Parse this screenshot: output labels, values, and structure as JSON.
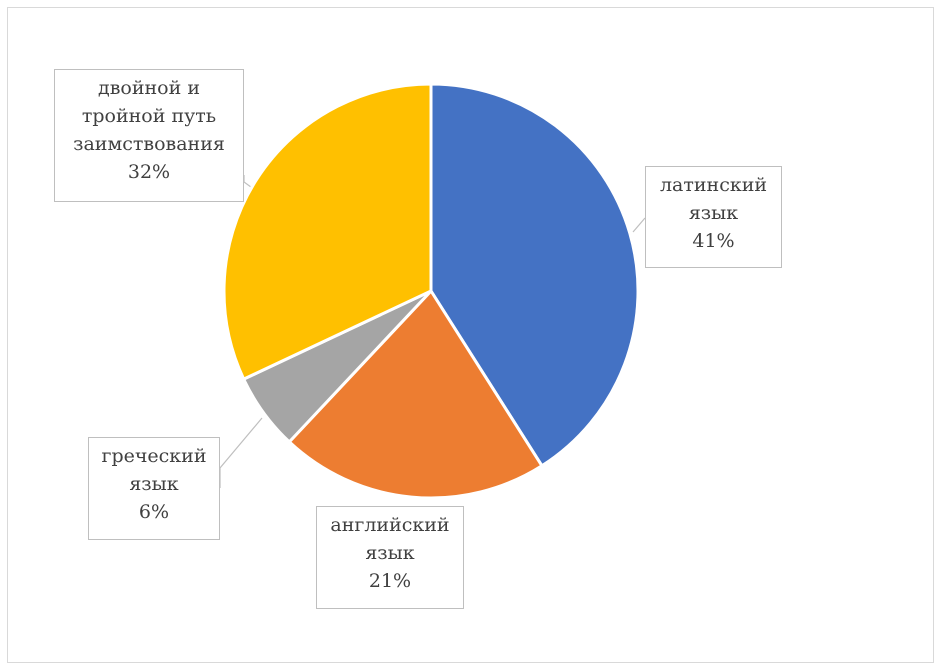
{
  "chart_data": {
    "type": "pie",
    "slices": [
      {
        "label_lines": [
          "латинский",
          "язык"
        ],
        "percent_label": "41%",
        "value": 41,
        "color": "#4472C4"
      },
      {
        "label_lines": [
          "английский",
          "язык"
        ],
        "percent_label": "21%",
        "value": 21,
        "color": "#ED7D31"
      },
      {
        "label_lines": [
          "греческий",
          "язык"
        ],
        "percent_label": "6%",
        "value": 6,
        "color": "#A5A5A5"
      },
      {
        "label_lines": [
          "двойной и",
          "тройной путь",
          "заимствования"
        ],
        "percent_label": "32%",
        "value": 32,
        "color": "#FFC000"
      }
    ],
    "start_angle_deg": 0,
    "direction": "clockwise",
    "legend": "none",
    "data_labels": "callouts"
  }
}
